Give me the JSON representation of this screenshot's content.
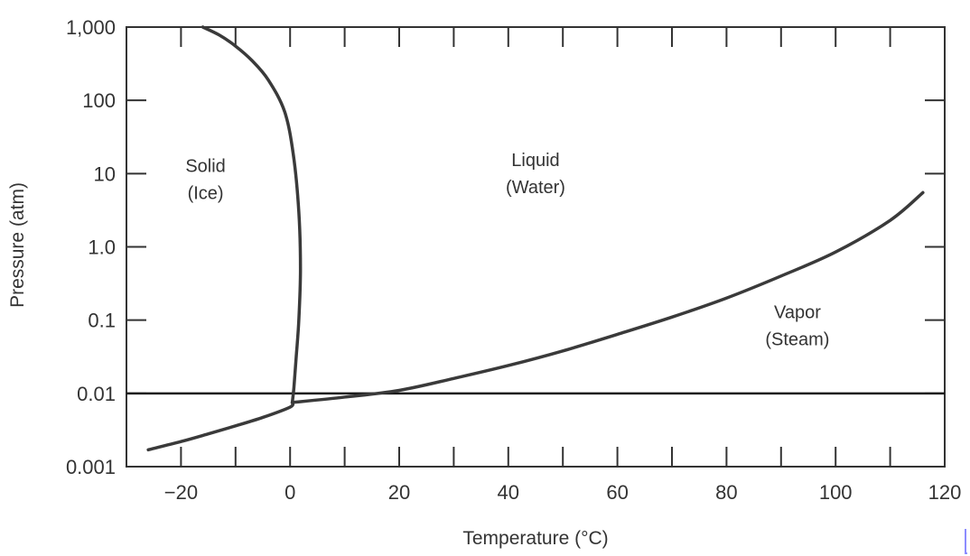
{
  "chart_data": {
    "type": "line",
    "xlabel": "Temperature (°C)",
    "ylabel": "Pressure (atm)",
    "xlim": [
      -30,
      120
    ],
    "ylim": [
      0.001,
      1000
    ],
    "y_scale": "log",
    "grid": false,
    "x_ticks": [
      -20,
      0,
      20,
      40,
      60,
      80,
      100,
      120
    ],
    "x_tick_labels": [
      "−20",
      "0",
      "20",
      "40",
      "60",
      "80",
      "100",
      "120"
    ],
    "y_ticks": [
      0.001,
      0.01,
      0.1,
      1,
      10,
      100,
      1000
    ],
    "y_tick_labels": [
      "0.001",
      "0.01",
      "0.1",
      "1.0",
      "10",
      "100",
      "1,000"
    ],
    "series": [
      {
        "key": "solid-liquid",
        "x": [
          -16,
          -13,
          -10,
          -7,
          -4,
          -1,
          0.6,
          1.6,
          1.9,
          1.6,
          1.1,
          0.7,
          0.4
        ],
        "y": [
          1000,
          780,
          550,
          350,
          190,
          70,
          18,
          3,
          0.5,
          0.1,
          0.03,
          0.012,
          0.0075
        ]
      },
      {
        "key": "solid-vapor",
        "x": [
          -26,
          -20,
          -15,
          -10,
          -5,
          0,
          0.4
        ],
        "y": [
          0.0017,
          0.0022,
          0.0028,
          0.0036,
          0.0047,
          0.0065,
          0.0075
        ]
      },
      {
        "key": "liquid-vapor",
        "x": [
          0.4,
          10,
          20,
          30,
          40,
          50,
          60,
          70,
          80,
          90,
          100,
          110,
          116
        ],
        "y": [
          0.0075,
          0.0089,
          0.011,
          0.016,
          0.024,
          0.038,
          0.064,
          0.11,
          0.2,
          0.4,
          0.85,
          2.3,
          5.5
        ]
      }
    ],
    "reference_line": {
      "y": 0.01
    },
    "region_labels": [
      {
        "key": "solid",
        "lines": [
          "Solid",
          "(Ice)"
        ],
        "x": -15.5,
        "y": 10
      },
      {
        "key": "liquid",
        "lines": [
          "Liquid",
          "(Water)"
        ],
        "x": 45,
        "y": 12
      },
      {
        "key": "vapor",
        "lines": [
          "Vapor",
          "(Steam)"
        ],
        "x": 93,
        "y": 0.1
      }
    ]
  },
  "colors": {
    "axis": "#333333",
    "curve": "#3a3a3a",
    "reference_line": "#1a1a1a",
    "background": "#ffffff"
  }
}
